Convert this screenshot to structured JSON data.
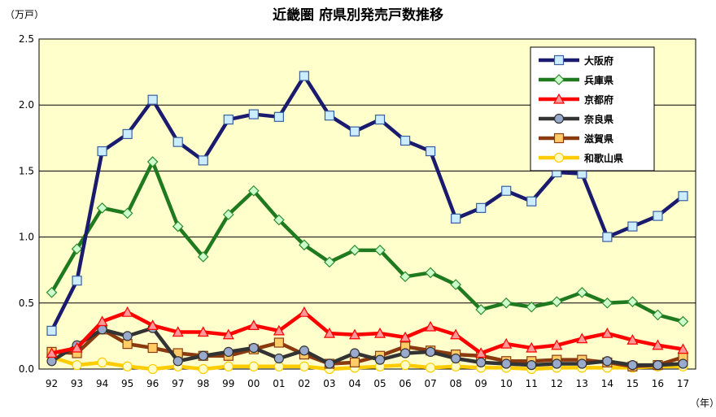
{
  "chart_data": {
    "type": "line",
    "title": "近畿圏 府県別発売戸数推移",
    "y_unit_label": "（万戸）",
    "x_unit_label": "（年）",
    "categories": [
      "92",
      "93",
      "94",
      "95",
      "96",
      "97",
      "98",
      "99",
      "00",
      "01",
      "02",
      "03",
      "04",
      "05",
      "06",
      "07",
      "08",
      "09",
      "10",
      "11",
      "12",
      "13",
      "14",
      "15",
      "16",
      "17"
    ],
    "y_ticks": [
      "0.0",
      "0.5",
      "1.0",
      "1.5",
      "2.0",
      "2.5"
    ],
    "ylim": [
      0,
      2.5
    ],
    "grid": true,
    "legend_position": "top-right",
    "colors": {
      "plot_background": "#ffffcc",
      "grid": "#000000"
    },
    "series": [
      {
        "name": "大阪府",
        "color": "#1a1a6e",
        "marker": "square",
        "marker_fill": "#ccecff",
        "marker_stroke": "#3a5fa0",
        "values": [
          0.29,
          0.67,
          1.65,
          1.78,
          2.04,
          1.72,
          1.58,
          1.89,
          1.93,
          1.91,
          2.22,
          1.92,
          1.8,
          1.89,
          1.73,
          1.65,
          1.14,
          1.22,
          1.35,
          1.27,
          1.49,
          1.48,
          1.0,
          1.08,
          1.16,
          1.31
        ]
      },
      {
        "name": "兵庫県",
        "color": "#1f7a1f",
        "marker": "diamond",
        "marker_fill": "#ccffcc",
        "marker_stroke": "#2e8b2e",
        "values": [
          0.58,
          0.91,
          1.22,
          1.18,
          1.57,
          1.08,
          0.85,
          1.17,
          1.35,
          1.13,
          0.94,
          0.81,
          0.9,
          0.9,
          0.7,
          0.73,
          0.64,
          0.45,
          0.5,
          0.47,
          0.51,
          0.58,
          0.5,
          0.51,
          0.41,
          0.36
        ]
      },
      {
        "name": "京都府",
        "color": "#ff0000",
        "marker": "triangle",
        "marker_fill": "#ff9999",
        "marker_stroke": "#ff0000",
        "values": [
          0.12,
          0.16,
          0.36,
          0.43,
          0.33,
          0.28,
          0.28,
          0.26,
          0.33,
          0.29,
          0.43,
          0.27,
          0.26,
          0.27,
          0.24,
          0.32,
          0.26,
          0.12,
          0.19,
          0.16,
          0.18,
          0.23,
          0.27,
          0.22,
          0.18,
          0.15
        ]
      },
      {
        "name": "奈良県",
        "color": "#333333",
        "marker": "circle",
        "marker_fill": "#99aacc",
        "marker_stroke": "#333333",
        "values": [
          0.06,
          0.18,
          0.3,
          0.25,
          0.31,
          0.06,
          0.1,
          0.13,
          0.16,
          0.08,
          0.14,
          0.04,
          0.12,
          0.07,
          0.12,
          0.13,
          0.08,
          0.05,
          0.04,
          0.03,
          0.04,
          0.04,
          0.06,
          0.03,
          0.03,
          0.04
        ]
      },
      {
        "name": "滋賀県",
        "color": "#8b3a0f",
        "marker": "square",
        "marker_fill": "#ffcc66",
        "marker_stroke": "#8b3a0f",
        "values": [
          0.13,
          0.12,
          0.3,
          0.19,
          0.16,
          0.12,
          0.1,
          0.1,
          0.15,
          0.2,
          0.11,
          0.04,
          0.05,
          0.1,
          0.17,
          0.14,
          0.11,
          0.1,
          0.06,
          0.06,
          0.07,
          0.07,
          0.05,
          0.02,
          0.03,
          0.09
        ]
      },
      {
        "name": "和歌山県",
        "color": "#ffcc00",
        "marker": "circle",
        "marker_fill": "#ffffcc",
        "marker_stroke": "#ffcc00",
        "values": [
          0.09,
          0.03,
          0.05,
          0.02,
          0.0,
          0.02,
          0.0,
          0.02,
          0.02,
          0.02,
          0.02,
          0.0,
          0.01,
          0.02,
          0.03,
          0.01,
          0.02,
          0.01,
          0.01,
          0.0,
          0.01,
          0.01,
          0.01,
          0.01,
          0.02,
          0.02
        ]
      }
    ]
  }
}
